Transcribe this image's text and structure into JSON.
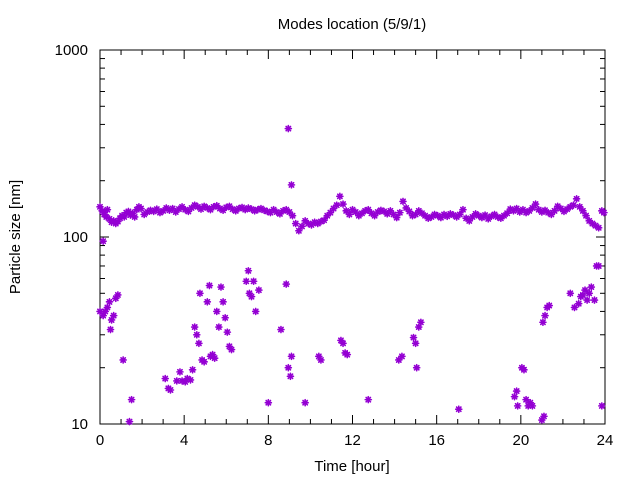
{
  "chart_data": {
    "type": "scatter",
    "title": "Modes location (5/9/1)",
    "xlabel": "Time [hour]",
    "ylabel": "Particle size [nm]",
    "xlim": [
      0,
      24
    ],
    "ylim": [
      10,
      1000
    ],
    "yscale": "log",
    "grid": false,
    "legend": "none",
    "marker_color": "#9400d3",
    "x_ticks": [
      0,
      4,
      8,
      12,
      16,
      20,
      24
    ],
    "x_tick_labels": [
      "0",
      "4",
      "8",
      "12",
      "16",
      "20",
      "24"
    ],
    "y_ticks": [
      10,
      100,
      1000
    ],
    "y_tick_labels": [
      "10",
      "100",
      "1000"
    ],
    "series": [
      {
        "points": [
          [
            0.0,
            145
          ],
          [
            0.1,
            138
          ],
          [
            0.2,
            132
          ],
          [
            0.3,
            128
          ],
          [
            0.35,
            140
          ],
          [
            0.45,
            125
          ],
          [
            0.55,
            120
          ],
          [
            0.65,
            122
          ],
          [
            0.75,
            118
          ],
          [
            0.85,
            121
          ],
          [
            0.95,
            126
          ],
          [
            1.05,
            130
          ],
          [
            1.15,
            128
          ],
          [
            1.25,
            135
          ],
          [
            1.35,
            137
          ],
          [
            1.45,
            131
          ],
          [
            1.55,
            134
          ],
          [
            1.65,
            128
          ],
          [
            1.75,
            140
          ],
          [
            1.85,
            145
          ],
          [
            1.95,
            142
          ],
          [
            2.1,
            132
          ],
          [
            2.25,
            136
          ],
          [
            2.4,
            139
          ],
          [
            2.55,
            137
          ],
          [
            2.7,
            141
          ],
          [
            2.85,
            135
          ],
          [
            3.0,
            138
          ],
          [
            3.15,
            143
          ],
          [
            3.3,
            139
          ],
          [
            3.45,
            142
          ],
          [
            3.6,
            136
          ],
          [
            3.75,
            141
          ],
          [
            3.9,
            145
          ],
          [
            4.05,
            140
          ],
          [
            4.2,
            137
          ],
          [
            4.35,
            143
          ],
          [
            4.5,
            148
          ],
          [
            4.65,
            145
          ],
          [
            4.8,
            141
          ],
          [
            4.95,
            146
          ],
          [
            5.1,
            143
          ],
          [
            5.25,
            140
          ],
          [
            5.4,
            145
          ],
          [
            5.55,
            147
          ],
          [
            5.7,
            142
          ],
          [
            5.85,
            139
          ],
          [
            6.0,
            144
          ],
          [
            6.15,
            146
          ],
          [
            6.3,
            141
          ],
          [
            6.45,
            138
          ],
          [
            6.6,
            142
          ],
          [
            6.75,
            144
          ],
          [
            6.9,
            140
          ],
          [
            7.05,
            143
          ],
          [
            7.2,
            141
          ],
          [
            7.35,
            138
          ],
          [
            7.5,
            140
          ],
          [
            7.65,
            142
          ],
          [
            7.8,
            139
          ],
          [
            7.95,
            137
          ],
          [
            8.1,
            135
          ],
          [
            8.25,
            140
          ],
          [
            8.4,
            136
          ],
          [
            8.55,
            133
          ],
          [
            8.7,
            138
          ],
          [
            8.85,
            140
          ],
          [
            9.0,
            136
          ],
          [
            9.15,
            130
          ],
          [
            9.3,
            118
          ],
          [
            9.45,
            108
          ],
          [
            9.6,
            114
          ],
          [
            9.75,
            122
          ],
          [
            9.9,
            118
          ],
          [
            10.05,
            116
          ],
          [
            10.2,
            120
          ],
          [
            10.35,
            118
          ],
          [
            10.5,
            121
          ],
          [
            10.65,
            123
          ],
          [
            10.8,
            130
          ],
          [
            10.95,
            135
          ],
          [
            11.1,
            142
          ],
          [
            11.25,
            148
          ],
          [
            11.4,
            165
          ],
          [
            11.55,
            150
          ],
          [
            11.7,
            138
          ],
          [
            11.85,
            132
          ],
          [
            12.0,
            140
          ],
          [
            12.15,
            136
          ],
          [
            12.3,
            130
          ],
          [
            12.45,
            134
          ],
          [
            12.6,
            138
          ],
          [
            12.75,
            140
          ],
          [
            12.9,
            134
          ],
          [
            13.05,
            130
          ],
          [
            13.2,
            136
          ],
          [
            13.35,
            139
          ],
          [
            13.5,
            137
          ],
          [
            13.65,
            133
          ],
          [
            13.8,
            138
          ],
          [
            13.95,
            132
          ],
          [
            14.1,
            127
          ],
          [
            14.25,
            135
          ],
          [
            14.4,
            155
          ],
          [
            14.55,
            143
          ],
          [
            14.7,
            137
          ],
          [
            14.85,
            130
          ],
          [
            15.0,
            132
          ],
          [
            15.15,
            138
          ],
          [
            15.3,
            134
          ],
          [
            15.45,
            130
          ],
          [
            15.6,
            126
          ],
          [
            15.75,
            128
          ],
          [
            15.9,
            132
          ],
          [
            16.05,
            130
          ],
          [
            16.2,
            127
          ],
          [
            16.35,
            132
          ],
          [
            16.5,
            129
          ],
          [
            16.65,
            133
          ],
          [
            16.8,
            131
          ],
          [
            16.95,
            128
          ],
          [
            17.1,
            132
          ],
          [
            17.25,
            140
          ],
          [
            17.4,
            126
          ],
          [
            17.55,
            122
          ],
          [
            17.7,
            128
          ],
          [
            17.85,
            133
          ],
          [
            18.0,
            130
          ],
          [
            18.15,
            127
          ],
          [
            18.3,
            131
          ],
          [
            18.45,
            125
          ],
          [
            18.6,
            129
          ],
          [
            18.75,
            132
          ],
          [
            18.9,
            128
          ],
          [
            19.05,
            126
          ],
          [
            19.2,
            130
          ],
          [
            19.35,
            134
          ],
          [
            19.5,
            141
          ],
          [
            19.65,
            138
          ],
          [
            19.8,
            142
          ],
          [
            19.95,
            136
          ],
          [
            20.1,
            140
          ],
          [
            20.25,
            135
          ],
          [
            20.4,
            138
          ],
          [
            20.55,
            143
          ],
          [
            20.7,
            150
          ],
          [
            20.85,
            140
          ],
          [
            21.0,
            136
          ],
          [
            21.15,
            139
          ],
          [
            21.3,
            135
          ],
          [
            21.45,
            132
          ],
          [
            21.6,
            138
          ],
          [
            21.75,
            146
          ],
          [
            21.9,
            142
          ],
          [
            22.05,
            137
          ],
          [
            22.2,
            141
          ],
          [
            22.35,
            145
          ],
          [
            22.5,
            148
          ],
          [
            22.65,
            160
          ],
          [
            22.8,
            145
          ],
          [
            22.95,
            138
          ],
          [
            23.1,
            130
          ],
          [
            23.25,
            122
          ],
          [
            23.4,
            118
          ],
          [
            23.55,
            115
          ],
          [
            23.7,
            112
          ],
          [
            23.85,
            138
          ],
          [
            23.95,
            135
          ],
          [
            0.15,
            95
          ],
          [
            8.95,
            380
          ],
          [
            9.1,
            190
          ],
          [
            1.4,
            10.3
          ],
          [
            21.0,
            10.5
          ],
          [
            21.1,
            11.0
          ],
          [
            0.0,
            40
          ],
          [
            0.15,
            38
          ],
          [
            0.25,
            40
          ],
          [
            0.35,
            42
          ],
          [
            0.45,
            45
          ],
          [
            0.5,
            32
          ],
          [
            0.55,
            36
          ],
          [
            0.65,
            38
          ],
          [
            0.75,
            47
          ],
          [
            0.85,
            49
          ],
          [
            1.1,
            22
          ],
          [
            1.5,
            13.5
          ],
          [
            3.1,
            17.5
          ],
          [
            3.25,
            15.5
          ],
          [
            3.35,
            15.2
          ],
          [
            3.65,
            17
          ],
          [
            3.8,
            19
          ],
          [
            3.9,
            17
          ],
          [
            4.05,
            16.8
          ],
          [
            4.15,
            17.5
          ],
          [
            4.3,
            17.2
          ],
          [
            4.4,
            19.5
          ],
          [
            4.5,
            33
          ],
          [
            4.6,
            30
          ],
          [
            4.7,
            27
          ],
          [
            4.75,
            50
          ],
          [
            4.85,
            22
          ],
          [
            4.95,
            21.5
          ],
          [
            5.1,
            45
          ],
          [
            5.2,
            55
          ],
          [
            5.25,
            23
          ],
          [
            5.35,
            23.5
          ],
          [
            5.45,
            22.5
          ],
          [
            5.55,
            40
          ],
          [
            5.65,
            33
          ],
          [
            5.75,
            54
          ],
          [
            5.85,
            45
          ],
          [
            5.95,
            37
          ],
          [
            6.05,
            31
          ],
          [
            6.15,
            26
          ],
          [
            6.25,
            25
          ],
          [
            6.95,
            58
          ],
          [
            7.05,
            66
          ],
          [
            7.1,
            50
          ],
          [
            7.2,
            48
          ],
          [
            7.3,
            58
          ],
          [
            7.4,
            40
          ],
          [
            7.55,
            52
          ],
          [
            8.0,
            13
          ],
          [
            8.6,
            32
          ],
          [
            8.85,
            56
          ],
          [
            8.95,
            20
          ],
          [
            9.05,
            18
          ],
          [
            9.1,
            23
          ],
          [
            9.75,
            13
          ],
          [
            10.4,
            23
          ],
          [
            10.5,
            22
          ],
          [
            11.45,
            28
          ],
          [
            11.55,
            27
          ],
          [
            11.65,
            24
          ],
          [
            11.75,
            23.5
          ],
          [
            12.75,
            13.5
          ],
          [
            14.2,
            22
          ],
          [
            14.35,
            23
          ],
          [
            14.9,
            29
          ],
          [
            15.0,
            27
          ],
          [
            15.05,
            20
          ],
          [
            15.15,
            33
          ],
          [
            15.25,
            35
          ],
          [
            17.05,
            12
          ],
          [
            19.7,
            14
          ],
          [
            19.8,
            15
          ],
          [
            19.85,
            12.5
          ],
          [
            20.05,
            20
          ],
          [
            20.15,
            19.5
          ],
          [
            20.25,
            13.5
          ],
          [
            20.35,
            12.5
          ],
          [
            20.45,
            13
          ],
          [
            20.55,
            12.5
          ],
          [
            21.05,
            35
          ],
          [
            21.15,
            38
          ],
          [
            21.25,
            42
          ],
          [
            21.35,
            43
          ],
          [
            22.35,
            50
          ],
          [
            22.55,
            42
          ],
          [
            22.75,
            44
          ],
          [
            22.85,
            48
          ],
          [
            22.95,
            49
          ],
          [
            23.05,
            52
          ],
          [
            23.15,
            46
          ],
          [
            23.25,
            50
          ],
          [
            23.35,
            54
          ],
          [
            23.5,
            46
          ],
          [
            23.6,
            70
          ],
          [
            23.7,
            70
          ],
          [
            23.85,
            12.5
          ]
        ]
      }
    ]
  }
}
